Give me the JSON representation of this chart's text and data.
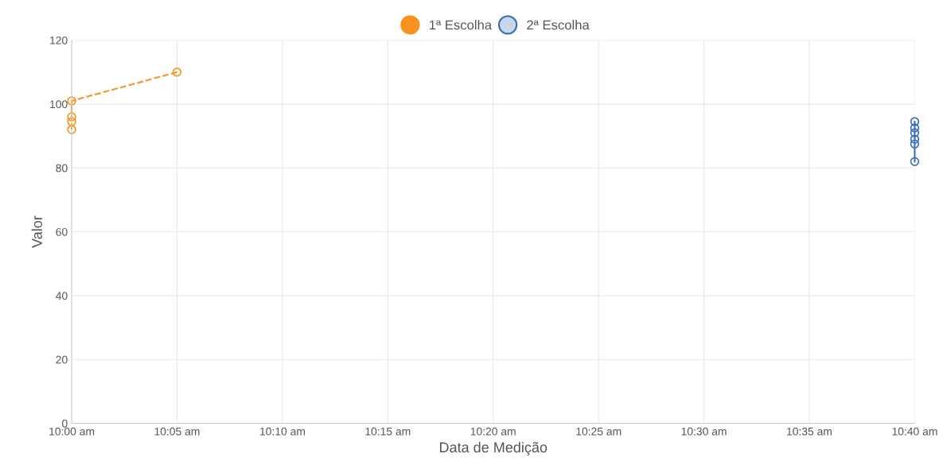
{
  "chart_data": {
    "type": "line",
    "xlabel": "Data de Medição",
    "ylabel": "Valor",
    "series": [
      {
        "name": "1ª Escolha",
        "color": "#f7931e",
        "line_style": "dashed",
        "x": [
          10.0,
          10.0,
          10.0,
          10.0,
          10.0833
        ],
        "values": [
          92,
          94.5,
          96,
          101,
          110
        ]
      },
      {
        "name": "2ª Escolha",
        "color": "#3a6fb8",
        "line_style": "solid",
        "x": [
          10.6667,
          10.6667,
          10.6667,
          10.6667,
          10.6667,
          10.6667
        ],
        "values": [
          82,
          87.5,
          89,
          91,
          92.5,
          94.5
        ]
      }
    ],
    "xlim": [
      10.0,
      10.6667
    ],
    "xticks": [
      {
        "value": 10.0,
        "label": "10:00 am"
      },
      {
        "value": 10.0833,
        "label": "10:05 am"
      },
      {
        "value": 10.1667,
        "label": "10:10 am"
      },
      {
        "value": 10.25,
        "label": "10:15 am"
      },
      {
        "value": 10.3333,
        "label": "10:20 am"
      },
      {
        "value": 10.4167,
        "label": "10:25 am"
      },
      {
        "value": 10.5,
        "label": "10:30 am"
      },
      {
        "value": 10.5833,
        "label": "10:35 am"
      },
      {
        "value": 10.6667,
        "label": "10:40 am"
      }
    ],
    "ylim": [
      0,
      120
    ],
    "yticks": [
      0,
      20,
      40,
      60,
      80,
      100,
      120
    ],
    "grid": true,
    "legend": "top",
    "marker": "circle"
  }
}
